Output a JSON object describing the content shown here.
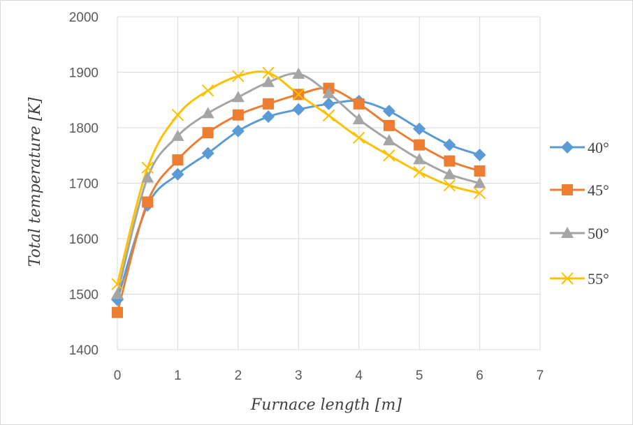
{
  "chart_data": {
    "type": "line",
    "title": "",
    "xlabel": "Furnace length  [m]",
    "ylabel": "Total temperature  [K]",
    "xlim": [
      0,
      7
    ],
    "ylim": [
      1400,
      2000
    ],
    "x_ticks": [
      "0",
      "1",
      "2",
      "3",
      "4",
      "5",
      "6",
      "7"
    ],
    "y_ticks": [
      "1400",
      "1500",
      "1600",
      "1700",
      "1800",
      "1900",
      "2000"
    ],
    "grid": true,
    "smooth": true,
    "legend_position": "right",
    "x": [
      0,
      0.5,
      1,
      1.5,
      2,
      2.5,
      3,
      3.5,
      4,
      4.5,
      5,
      5.5,
      6
    ],
    "series": [
      {
        "name": "40°",
        "color": "#5B9BD5",
        "marker": "diamond",
        "values": [
          1490,
          1660,
          1716,
          1754,
          1794,
          1820,
          1833,
          1843,
          1848,
          1830,
          1798,
          1769,
          1751
        ]
      },
      {
        "name": "45°",
        "color": "#ED7D31",
        "marker": "square",
        "values": [
          1467,
          1666,
          1742,
          1791,
          1823,
          1843,
          1860,
          1871,
          1843,
          1804,
          1769,
          1740,
          1722
        ]
      },
      {
        "name": "50°",
        "color": "#A5A5A5",
        "marker": "triangle",
        "values": [
          1500,
          1710,
          1785,
          1826,
          1855,
          1882,
          1897,
          1862,
          1815,
          1777,
          1743,
          1716,
          1700
        ]
      },
      {
        "name": "55°",
        "color": "#FFC000",
        "marker": "x",
        "values": [
          1518,
          1728,
          1823,
          1867,
          1893,
          1899,
          1860,
          1822,
          1782,
          1750,
          1720,
          1696,
          1682
        ]
      }
    ]
  }
}
